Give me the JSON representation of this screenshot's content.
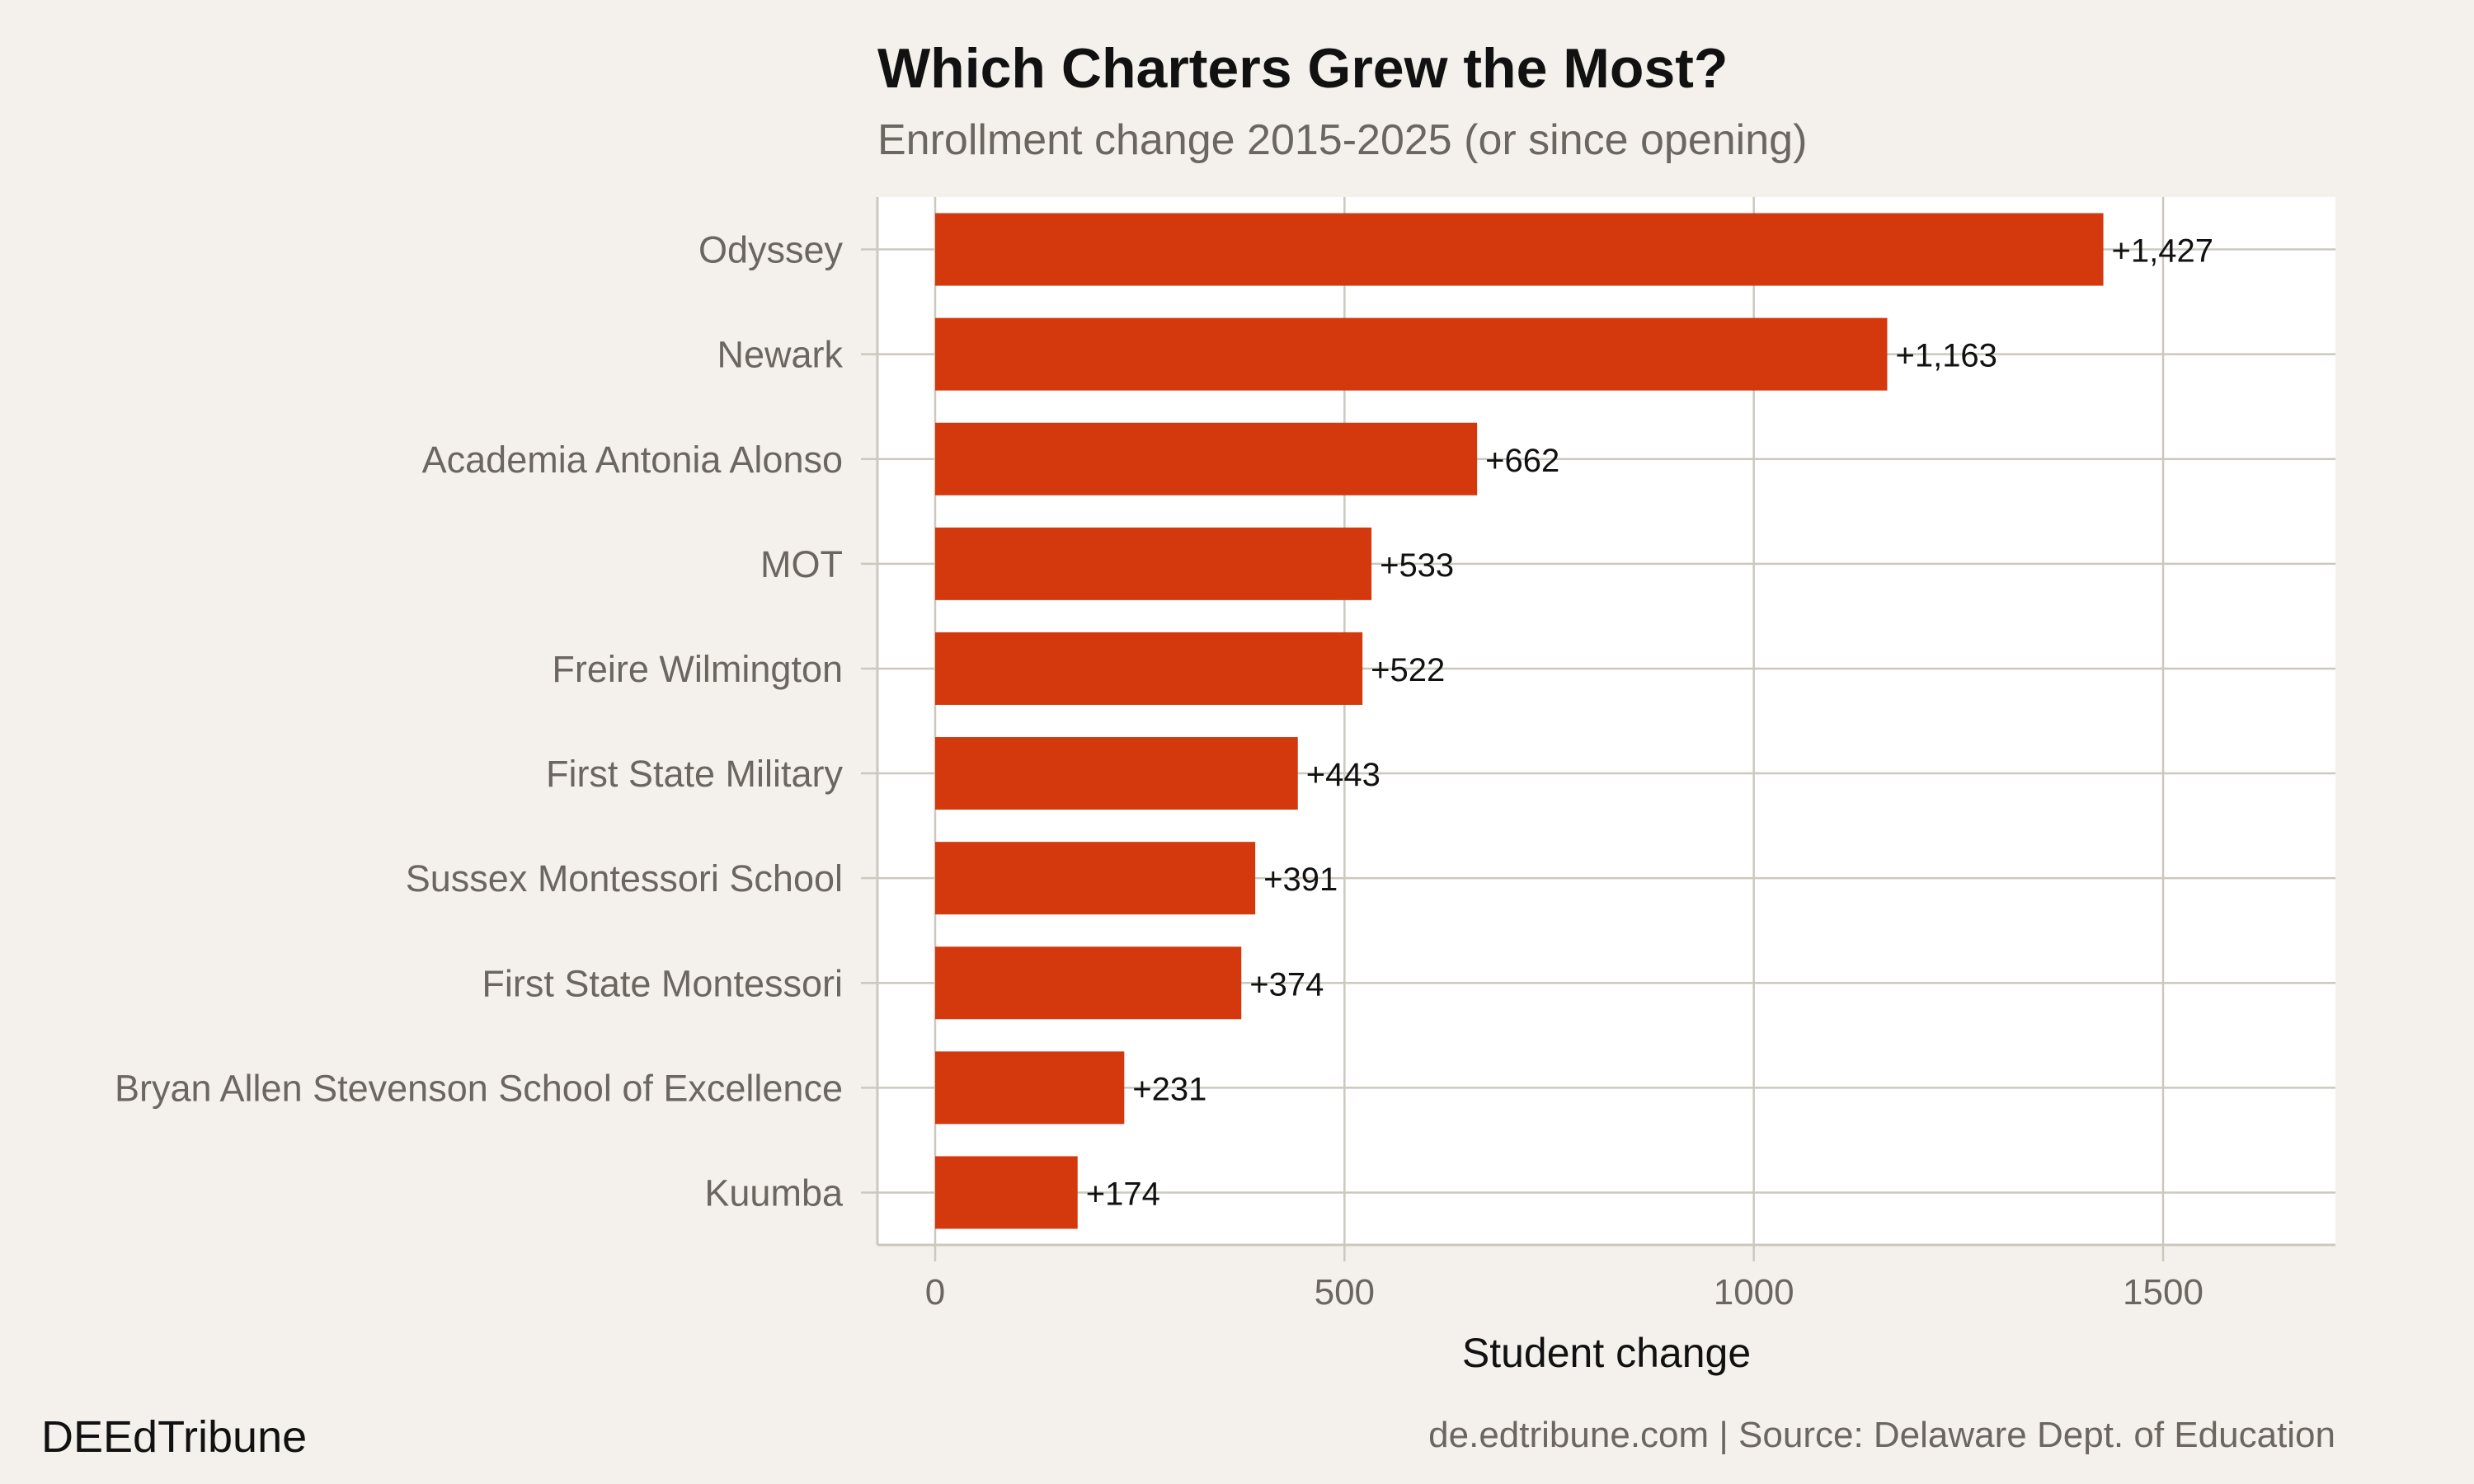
{
  "chart_data": {
    "type": "bar",
    "orientation": "horizontal",
    "title": "Which Charters Grew the Most?",
    "subtitle": "Enrollment change 2015-2025 (or since opening)",
    "xlabel": "Student change",
    "ylabel": "",
    "categories": [
      "Odyssey",
      "Newark",
      "Academia Antonia Alonso",
      "MOT",
      "Freire Wilmington",
      "First State Military",
      "Sussex Montessori School",
      "First State Montessori",
      "Bryan Allen Stevenson School of Excellence",
      "Kuumba"
    ],
    "values": [
      1427,
      1163,
      662,
      533,
      522,
      443,
      391,
      374,
      231,
      174
    ],
    "data_labels": [
      "+1,427",
      "+1,163",
      "+662",
      "+533",
      "+522",
      "+443",
      "+391",
      "+374",
      "+231",
      "+174"
    ],
    "xlim": [
      -72,
      1710
    ],
    "xticks": [
      0,
      500,
      1000,
      1500
    ],
    "xtick_labels": [
      "0",
      "500",
      "1000",
      "1500"
    ],
    "grid": true,
    "colors": {
      "bar": "#D4380D",
      "background": "#F4F1EC",
      "panel": "#FFFFFF",
      "grid": "#CCC8BF"
    }
  },
  "footer": {
    "brand": "DEEdTribune",
    "source": "de.edtribune.com | Source: Delaware Dept. of Education"
  }
}
